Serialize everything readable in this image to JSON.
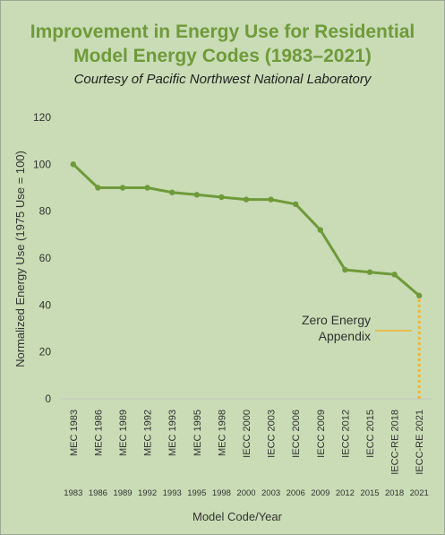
{
  "chart_data": {
    "type": "line",
    "title_lines": [
      "Improvement in Energy Use for Residential",
      "Model Energy Codes (1983–2021)"
    ],
    "subtitle": "Courtesy of Pacific Northwest National Laboratory",
    "xlabel": "Model Code/Year",
    "ylabel": "Normalized Energy Use (1975 Use = 100)",
    "ylim": [
      0,
      120
    ],
    "yticks": [
      0,
      20,
      40,
      60,
      80,
      100,
      120
    ],
    "grid": false,
    "categories": [
      "MEC 1983",
      "MEC 1986",
      "MEC 1989",
      "MEC 1992",
      "MEC 1993",
      "MEC 1995",
      "MEC 1998",
      "IECC 2000",
      "IECC 2003",
      "IECC 2006",
      "IECC 2009",
      "IECC 2012",
      "IECC 2015",
      "IECC-RE 2018",
      "IECC-RE 2021"
    ],
    "years": [
      "1983",
      "1986",
      "1989",
      "1992",
      "1993",
      "1995",
      "1998",
      "2000",
      "2003",
      "2006",
      "2009",
      "2012",
      "2015",
      "2018",
      "2021"
    ],
    "series": [
      {
        "values": [
          100,
          90,
          90,
          90,
          88,
          87,
          86,
          85,
          85,
          83,
          72,
          55,
          54,
          53,
          44
        ]
      }
    ],
    "annotation": {
      "text_lines": [
        "Zero Energy",
        "Appendix"
      ],
      "category": "IECC-RE 2021",
      "from": 0,
      "to": 44
    },
    "colors": {
      "line": "#6f9a3a",
      "annotation": "#f2b632",
      "background": "#c9dcb5",
      "title": "#6f9a3a"
    }
  }
}
